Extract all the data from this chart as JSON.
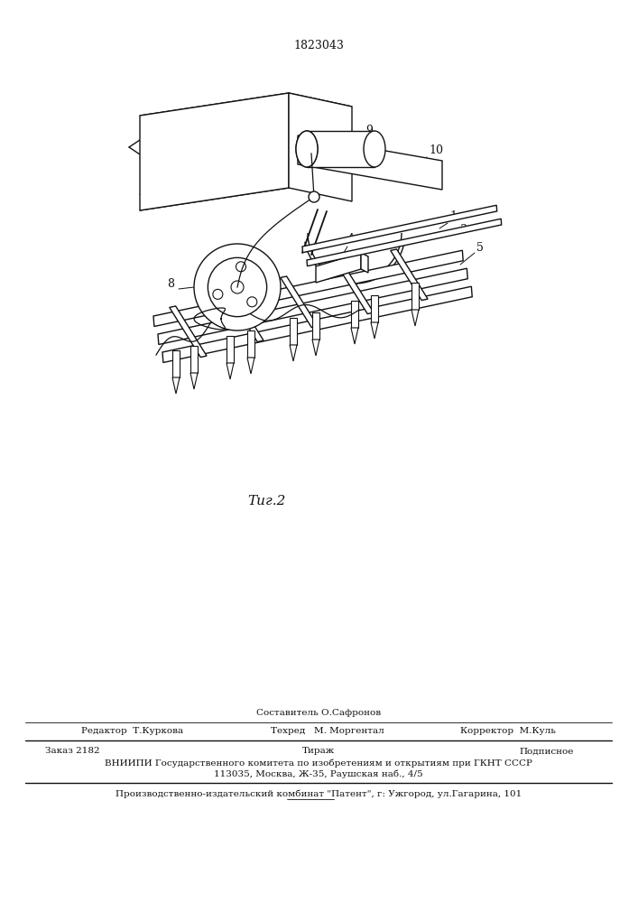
{
  "patent_number": "1823043",
  "fig_label": "Τиг.2",
  "background_color": "#ffffff",
  "line_color": "#1a1a1a",
  "composer_label": "Составитель О.Сафронов",
  "editor_label": "Редактор  Т.Куркова",
  "techred_label": "Техред   М. Моргентал",
  "corrector_label": "Корректор  М.Куль",
  "order_label": "Заказ 2182",
  "tirazh_label": "Тираж",
  "podpisnoe_label": "Подписное",
  "vniip_line1": "ВНИИПИ Государственного комитета по изобретениям и открытиям при ГКНТ СССР",
  "vniip_line2": "113035, Москва, Ж-35, Раушская наб., 4/5",
  "proizv": "Производственно-издательский комбинат \"Патент\", г: Ужгород, ул.Гагарина, 101"
}
